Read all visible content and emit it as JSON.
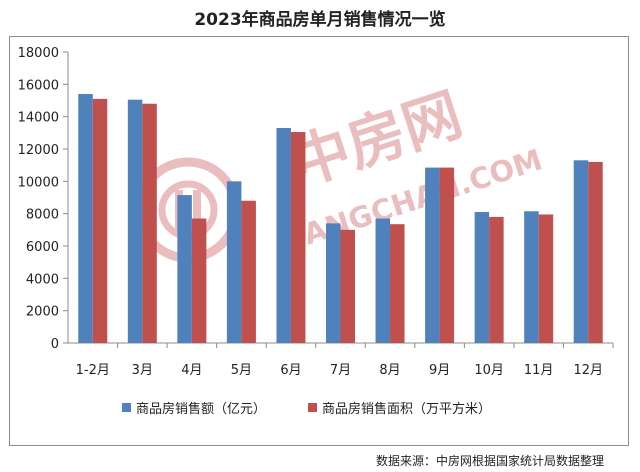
{
  "title": "2023年商品房单月销售情况一览",
  "source": "数据来源：中房网根据国家统计局数据整理",
  "watermark": {
    "cn": "中房网",
    "en": "FANGCHAN.COM"
  },
  "colors": {
    "series1": "#4f81bd",
    "series2": "#c0504d",
    "grid": "#8c8c8c",
    "watermark": "#d9888a"
  },
  "chart_data": {
    "type": "bar",
    "title": "2023年商品房单月销售情况一览",
    "categories": [
      "1-2月",
      "3月",
      "4月",
      "5月",
      "6月",
      "7月",
      "8月",
      "9月",
      "10月",
      "11月",
      "12月"
    ],
    "series": [
      {
        "name": "商品房销售额（亿元）",
        "color": "#4f81bd",
        "values": [
          15400,
          15050,
          9150,
          10000,
          13300,
          7400,
          7700,
          10850,
          8100,
          8150,
          11300
        ]
      },
      {
        "name": "商品房销售面积（万平方米）",
        "color": "#c0504d",
        "values": [
          15100,
          14800,
          7700,
          8800,
          13050,
          7000,
          7350,
          10850,
          7800,
          7950,
          11200
        ]
      }
    ],
    "ylim": [
      0,
      18000
    ],
    "yticks": [
      0,
      2000,
      4000,
      6000,
      8000,
      10000,
      12000,
      14000,
      16000,
      18000
    ],
    "grid": false,
    "legend": "bottom"
  }
}
